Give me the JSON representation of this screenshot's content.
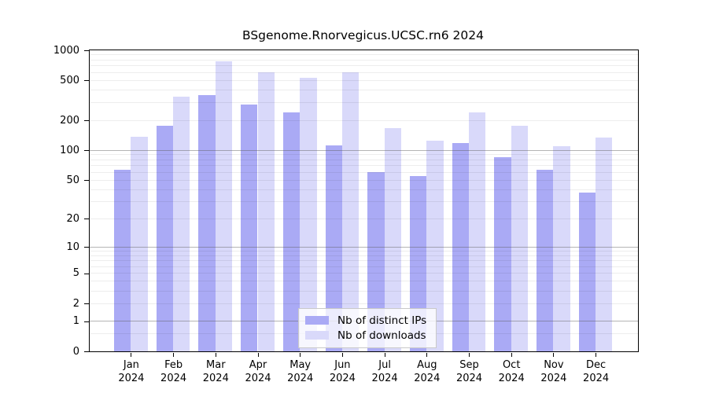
{
  "window": {
    "background": "#ffffff"
  },
  "chart_data": {
    "type": "bar",
    "title": "BSgenome.Rnorvegicus.UCSC.rn6 2024",
    "categories": [
      "Jan",
      "Feb",
      "Mar",
      "Apr",
      "May",
      "Jun",
      "Jul",
      "Aug",
      "Sep",
      "Oct",
      "Nov",
      "Dec"
    ],
    "year_label": "2024",
    "series": [
      {
        "name": "Nb of distinct IPs",
        "color": "#aaaaf5",
        "values": [
          64,
          175,
          360,
          285,
          240,
          112,
          60,
          55,
          118,
          85,
          63,
          37
        ]
      },
      {
        "name": "Nb of downloads",
        "color": "#d9d9fa",
        "values": [
          137,
          345,
          770,
          600,
          530,
          600,
          167,
          125,
          238,
          176,
          110,
          134
        ]
      }
    ],
    "xlabel": "",
    "ylabel": "",
    "y_scale": "log1p",
    "ylim": [
      0,
      1000
    ],
    "y_ticks": [
      0,
      1,
      2,
      5,
      10,
      20,
      50,
      100,
      200,
      500,
      1000
    ],
    "grid": true,
    "grid_major_at": [
      1,
      10,
      100
    ],
    "legend_position": "bottom-center",
    "colors": {
      "frame": "#000000",
      "major_grid": "#5a5a5a",
      "minor_grid": "#ebebeb"
    }
  }
}
